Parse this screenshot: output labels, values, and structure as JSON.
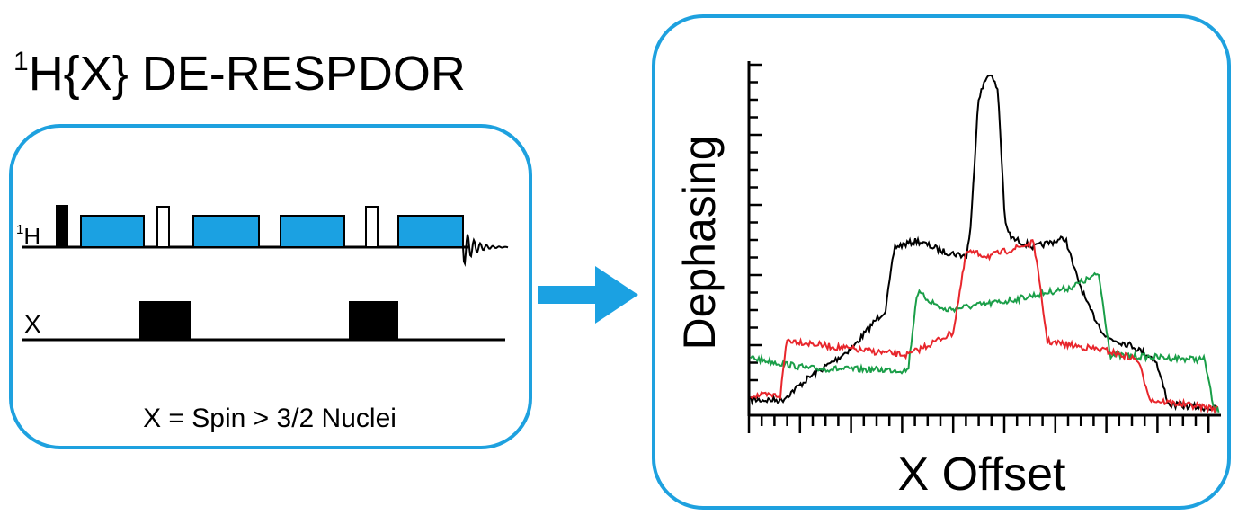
{
  "header": {
    "title_sup": "1",
    "title": "H{X} DE-RESPDOR"
  },
  "sequence": {
    "channels": [
      {
        "sup": "1",
        "label": "H"
      },
      {
        "label": "X"
      }
    ],
    "caption": "X = Spin > 3/2 Nuclei"
  },
  "plot": {
    "ylabel": "Dephasing",
    "xlabel": "X Offset"
  }
}
